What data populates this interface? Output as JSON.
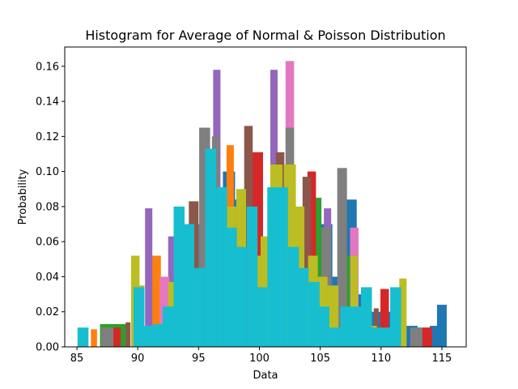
{
  "chart_data": {
    "type": "bar",
    "title": "Histogram for Average of Normal & Poisson Distribution",
    "xlabel": "Data",
    "ylabel": "Probability",
    "xlim": [
      84,
      117
    ],
    "ylim": [
      0,
      0.171
    ],
    "xticks": [
      85,
      90,
      95,
      100,
      105,
      110,
      115
    ],
    "yticks": [
      0.0,
      0.02,
      0.04,
      0.06,
      0.08,
      0.1,
      0.12,
      0.14,
      0.16
    ],
    "grid": false,
    "legend": "none",
    "series": [
      {
        "color": "#1f77b4",
        "x": [
          94.5,
          95.5,
          96.5,
          97.5,
          98.5,
          99.5,
          100.5,
          101.5,
          102.5,
          103.5,
          104.5,
          105.5,
          106.5,
          107.5,
          108.5,
          109.5,
          110.5,
          111.5,
          112.5,
          113.5,
          114.5,
          115.0
        ],
        "width": [
          1.0,
          1.0,
          1.0,
          1.0,
          1.0,
          1.0,
          1.0,
          1.0,
          1.0,
          1.0,
          1.0,
          1.0,
          1.0,
          1.0,
          1.0,
          1.0,
          1.0,
          1.0,
          1.0,
          1.0,
          1.0,
          0.8
        ],
        "y": [
          0.045,
          0.07,
          0.09,
          0.1,
          0.084,
          0.07,
          0.06,
          0.07,
          0.08,
          0.07,
          0.06,
          0.07,
          0.04,
          0.084,
          0.03,
          0.02,
          0.02,
          0.015,
          0.012,
          0.011,
          0.012,
          0.024
        ]
      },
      {
        "color": "#ff7f0e",
        "x": [
          86.4,
          91.5,
          97.6
        ],
        "width": [
          0.5,
          0.8,
          0.6
        ],
        "y": [
          0.01,
          0.052,
          0.115
        ]
      },
      {
        "color": "#2ca02c",
        "x": [
          88.0,
          89.0,
          104.8,
          107.4
        ],
        "width": [
          2.2,
          0.6,
          0.6,
          0.6
        ],
        "y": [
          0.013,
          0.012,
          0.085,
          0.052
        ]
      },
      {
        "color": "#d62728",
        "x": [
          88.3,
          99.8,
          104.3,
          110.3,
          113.8
        ],
        "width": [
          0.6,
          1.0,
          0.7,
          0.7,
          0.8
        ],
        "y": [
          0.011,
          0.111,
          0.1,
          0.033,
          0.011
        ]
      },
      {
        "color": "#9467bd",
        "x": [
          90.9,
          92.8,
          96.5,
          101.2,
          105.6,
          108.8
        ],
        "width": [
          0.6,
          0.6,
          0.6,
          0.6,
          0.6,
          0.5
        ],
        "y": [
          0.079,
          0.063,
          0.158,
          0.158,
          0.079,
          0.031
        ]
      },
      {
        "color": "#8c564b",
        "x": [
          89.2,
          94.6,
          99.1,
          101.7,
          103.9,
          109.6
        ],
        "width": [
          0.4,
          0.8,
          0.7,
          0.7,
          0.7,
          0.4
        ],
        "y": [
          0.014,
          0.083,
          0.126,
          0.111,
          0.097,
          0.022
        ]
      },
      {
        "color": "#e377c2",
        "x": [
          92.2,
          94.6,
          102.5,
          107.8
        ],
        "width": [
          0.8,
          0.8,
          0.7,
          0.7
        ],
        "y": [
          0.04,
          0.04,
          0.163,
          0.068
        ]
      },
      {
        "color": "#7f7f7f",
        "x": [
          87.5,
          95.5,
          96.4,
          102.5,
          105.5,
          106.8,
          112.9
        ],
        "width": [
          1.0,
          0.9,
          0.6,
          0.7,
          0.8,
          0.8,
          1.0
        ],
        "y": [
          0.011,
          0.125,
          0.12,
          0.125,
          0.068,
          0.102,
          0.011
        ]
      },
      {
        "color": "#bcbd22",
        "x": [
          89.8,
          90.3,
          93.0,
          97.6,
          98.5,
          99.6,
          100.5,
          101.4,
          102.5,
          103.3,
          104.4,
          105.2,
          106.0,
          107.8,
          109.4,
          111.8
        ],
        "width": [
          0.7,
          0.5,
          1.0,
          1.0,
          0.8,
          1.0,
          0.8,
          1.0,
          1.0,
          0.8,
          0.8,
          0.8,
          1.0,
          0.6,
          0.5,
          0.6
        ],
        "y": [
          0.052,
          0.035,
          0.037,
          0.08,
          0.09,
          0.052,
          0.063,
          0.104,
          0.104,
          0.08,
          0.052,
          0.04,
          0.035,
          0.052,
          0.012,
          0.039
        ]
      },
      {
        "color": "#17becf",
        "x": [
          85.5,
          90.1,
          90.9,
          91.7,
          92.5,
          93.4,
          94.2,
          95.1,
          96.0,
          96.9,
          97.7,
          98.5,
          99.4,
          100.2,
          101.1,
          101.9,
          102.8,
          103.6,
          104.5,
          105.3,
          106.2,
          107.1,
          107.9,
          108.8,
          109.6,
          110.4,
          111.2
        ],
        "width": [
          0.9,
          0.9,
          0.9,
          0.9,
          0.9,
          0.9,
          0.9,
          0.9,
          0.9,
          0.9,
          0.9,
          0.9,
          0.9,
          0.9,
          0.9,
          0.9,
          0.9,
          0.9,
          0.9,
          0.9,
          0.9,
          0.9,
          0.9,
          0.9,
          0.9,
          0.9,
          0.9
        ],
        "y": [
          0.011,
          0.034,
          0.012,
          0.013,
          0.023,
          0.08,
          0.07,
          0.045,
          0.113,
          0.091,
          0.068,
          0.057,
          0.08,
          0.034,
          0.091,
          0.091,
          0.057,
          0.045,
          0.037,
          0.023,
          0.011,
          0.023,
          0.023,
          0.034,
          0.011,
          0.011,
          0.034
        ]
      }
    ]
  }
}
